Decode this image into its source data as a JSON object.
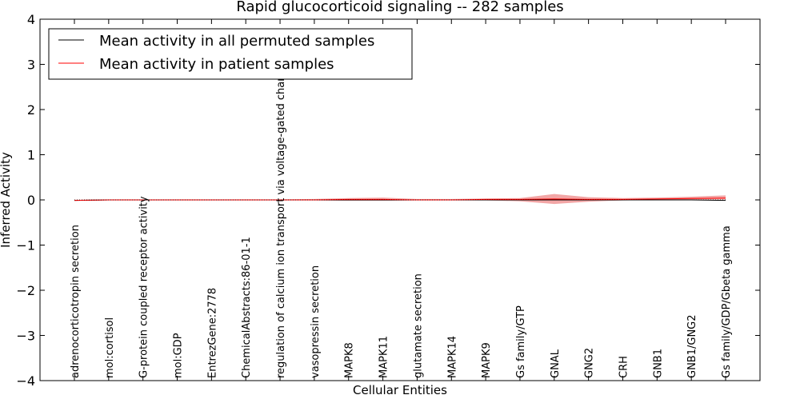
{
  "chart_data": {
    "type": "line",
    "title": "Rapid glucocorticoid signaling -- 282 samples",
    "xlabel": "Cellular Entities",
    "ylabel": "Inferred Activity",
    "ylim": [
      -4,
      4
    ],
    "yticks": [
      4,
      3,
      2,
      1,
      0,
      -1,
      -2,
      -3,
      -4
    ],
    "ytick_labels": [
      "4",
      "3",
      "2",
      "1",
      "0",
      "−1",
      "−2",
      "−3",
      "−4"
    ],
    "categories": [
      "adrenocorticotropin secretion",
      "mol:cortisol",
      "G-protein coupled receptor activity",
      "mol:GDP",
      "EntrezGene:2778",
      "ChemicalAbstracts:86-01-1",
      "regulation of calcium ion transport via voltage-gated channel",
      "vasopressin secretion",
      "MAPK8",
      "MAPK11",
      "glutamate secretion",
      "MAPK14",
      "MAPK9",
      "Gs family/GTP",
      "GNAL",
      "GNG2",
      "CRH",
      "GNB1",
      "GNB1/GNG2",
      "Gs family/GDP/Gbeta gamma"
    ],
    "series": [
      {
        "name": "Mean activity in all permuted samples",
        "color": "#000000",
        "values": [
          -0.01,
          0,
          0,
          0,
          0,
          0,
          0,
          0,
          0,
          0,
          0,
          0,
          0,
          0,
          0,
          0,
          0,
          0,
          0,
          -0.01
        ]
      },
      {
        "name": "Mean activity in patient samples",
        "color": "#ff0000",
        "values": [
          -0.01,
          0,
          0,
          0,
          0,
          0,
          0,
          0,
          0.01,
          0.01,
          0,
          0,
          0.01,
          0.01,
          0.02,
          0.01,
          0.01,
          0.02,
          0.03,
          0.04
        ],
        "band_lower": [
          -0.02,
          -0.01,
          -0.01,
          -0.01,
          -0.01,
          -0.01,
          -0.01,
          -0.01,
          -0.02,
          -0.02,
          -0.01,
          -0.01,
          -0.01,
          -0.03,
          -0.09,
          -0.04,
          -0.01,
          0,
          0.01,
          0.01
        ],
        "band_upper": [
          0,
          0.01,
          0.01,
          0.01,
          0.01,
          0.01,
          0.01,
          0.02,
          0.04,
          0.05,
          0.02,
          0.02,
          0.03,
          0.04,
          0.13,
          0.06,
          0.04,
          0.05,
          0.07,
          0.1
        ],
        "band_color": "#ee8888"
      }
    ],
    "legend_position": "top-left",
    "grid": false
  }
}
